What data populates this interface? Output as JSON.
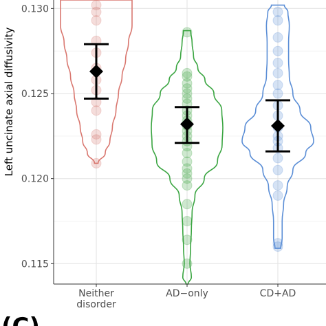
{
  "chart_data": {
    "type": "violin",
    "ylabel": "Left uncinate axial diffusivity",
    "xlabel": "",
    "ylim": [
      0.1138,
      0.1305
    ],
    "y_ticks": [
      0.115,
      0.12,
      0.125,
      0.13
    ],
    "y_tick_labels": [
      "0.115",
      "0.120",
      "0.125",
      "0.130"
    ],
    "categories": [
      {
        "name": "Neither\ndisorder",
        "lines": [
          "Neither",
          "disorder"
        ]
      },
      {
        "name": "AD−only",
        "lines": [
          "AD−only"
        ]
      },
      {
        "name": "CD+AD",
        "lines": [
          "CD+AD"
        ]
      }
    ],
    "panel_label": "(C)",
    "groups": [
      {
        "color": "#d9776f",
        "mean": 0.1263,
        "ci": [
          0.1247,
          0.1279
        ],
        "points": [
          0.1309,
          0.1302,
          0.1298,
          0.1293,
          0.1281,
          0.1274,
          0.1265,
          0.1258,
          0.1252,
          0.1245,
          0.124,
          0.1226,
          0.1223,
          0.1209
        ],
        "violin": [
          [
            0.1209,
            0.05
          ],
          [
            0.1215,
            0.25
          ],
          [
            0.1222,
            0.38
          ],
          [
            0.123,
            0.45
          ],
          [
            0.124,
            0.55
          ],
          [
            0.125,
            0.62
          ],
          [
            0.126,
            0.72
          ],
          [
            0.127,
            0.82
          ],
          [
            0.128,
            0.9
          ],
          [
            0.129,
            1.0
          ],
          [
            0.13,
            1.0
          ],
          [
            0.1305,
            1.0
          ]
        ]
      },
      {
        "color": "#3aa541",
        "mean": 0.1232,
        "ci": [
          0.1221,
          0.1242
        ],
        "points": [
          0.1286,
          0.1262,
          0.126,
          0.1256,
          0.1253,
          0.125,
          0.1247,
          0.1244,
          0.124,
          0.1237,
          0.1234,
          0.1231,
          0.1228,
          0.1225,
          0.1222,
          0.1219,
          0.1215,
          0.121,
          0.1206,
          0.1203,
          0.12,
          0.1196,
          0.1185,
          0.1175,
          0.1164,
          0.115
        ],
        "violin": [
          [
            0.1138,
            0.03
          ],
          [
            0.1142,
            0.12
          ],
          [
            0.115,
            0.08
          ],
          [
            0.116,
            0.1
          ],
          [
            0.117,
            0.12
          ],
          [
            0.118,
            0.14
          ],
          [
            0.119,
            0.22
          ],
          [
            0.12,
            0.48
          ],
          [
            0.121,
            0.85
          ],
          [
            0.122,
            0.98
          ],
          [
            0.123,
            1.0
          ],
          [
            0.124,
            0.97
          ],
          [
            0.125,
            0.75
          ],
          [
            0.1258,
            0.5
          ],
          [
            0.1265,
            0.3
          ],
          [
            0.1272,
            0.18
          ],
          [
            0.128,
            0.14
          ],
          [
            0.1287,
            0.1
          ]
        ]
      },
      {
        "color": "#5b8ed6",
        "mean": 0.1231,
        "ci": [
          0.1216,
          0.1246
        ],
        "points": [
          0.1298,
          0.1293,
          0.1283,
          0.1275,
          0.1268,
          0.1262,
          0.1255,
          0.125,
          0.1243,
          0.1237,
          0.123,
          0.1225,
          0.1222,
          0.1218,
          0.1212,
          0.1205,
          0.1196,
          0.119,
          0.1162,
          0.116
        ],
        "violin": [
          [
            0.1159,
            0.08
          ],
          [
            0.1165,
            0.12
          ],
          [
            0.1175,
            0.12
          ],
          [
            0.1185,
            0.16
          ],
          [
            0.1195,
            0.26
          ],
          [
            0.1205,
            0.42
          ],
          [
            0.1215,
            0.78
          ],
          [
            0.1222,
            1.0
          ],
          [
            0.123,
            0.92
          ],
          [
            0.124,
            0.62
          ],
          [
            0.125,
            0.42
          ],
          [
            0.126,
            0.32
          ],
          [
            0.127,
            0.3
          ],
          [
            0.128,
            0.3
          ],
          [
            0.129,
            0.32
          ],
          [
            0.1298,
            0.28
          ],
          [
            0.1302,
            0.18
          ]
        ]
      }
    ]
  }
}
